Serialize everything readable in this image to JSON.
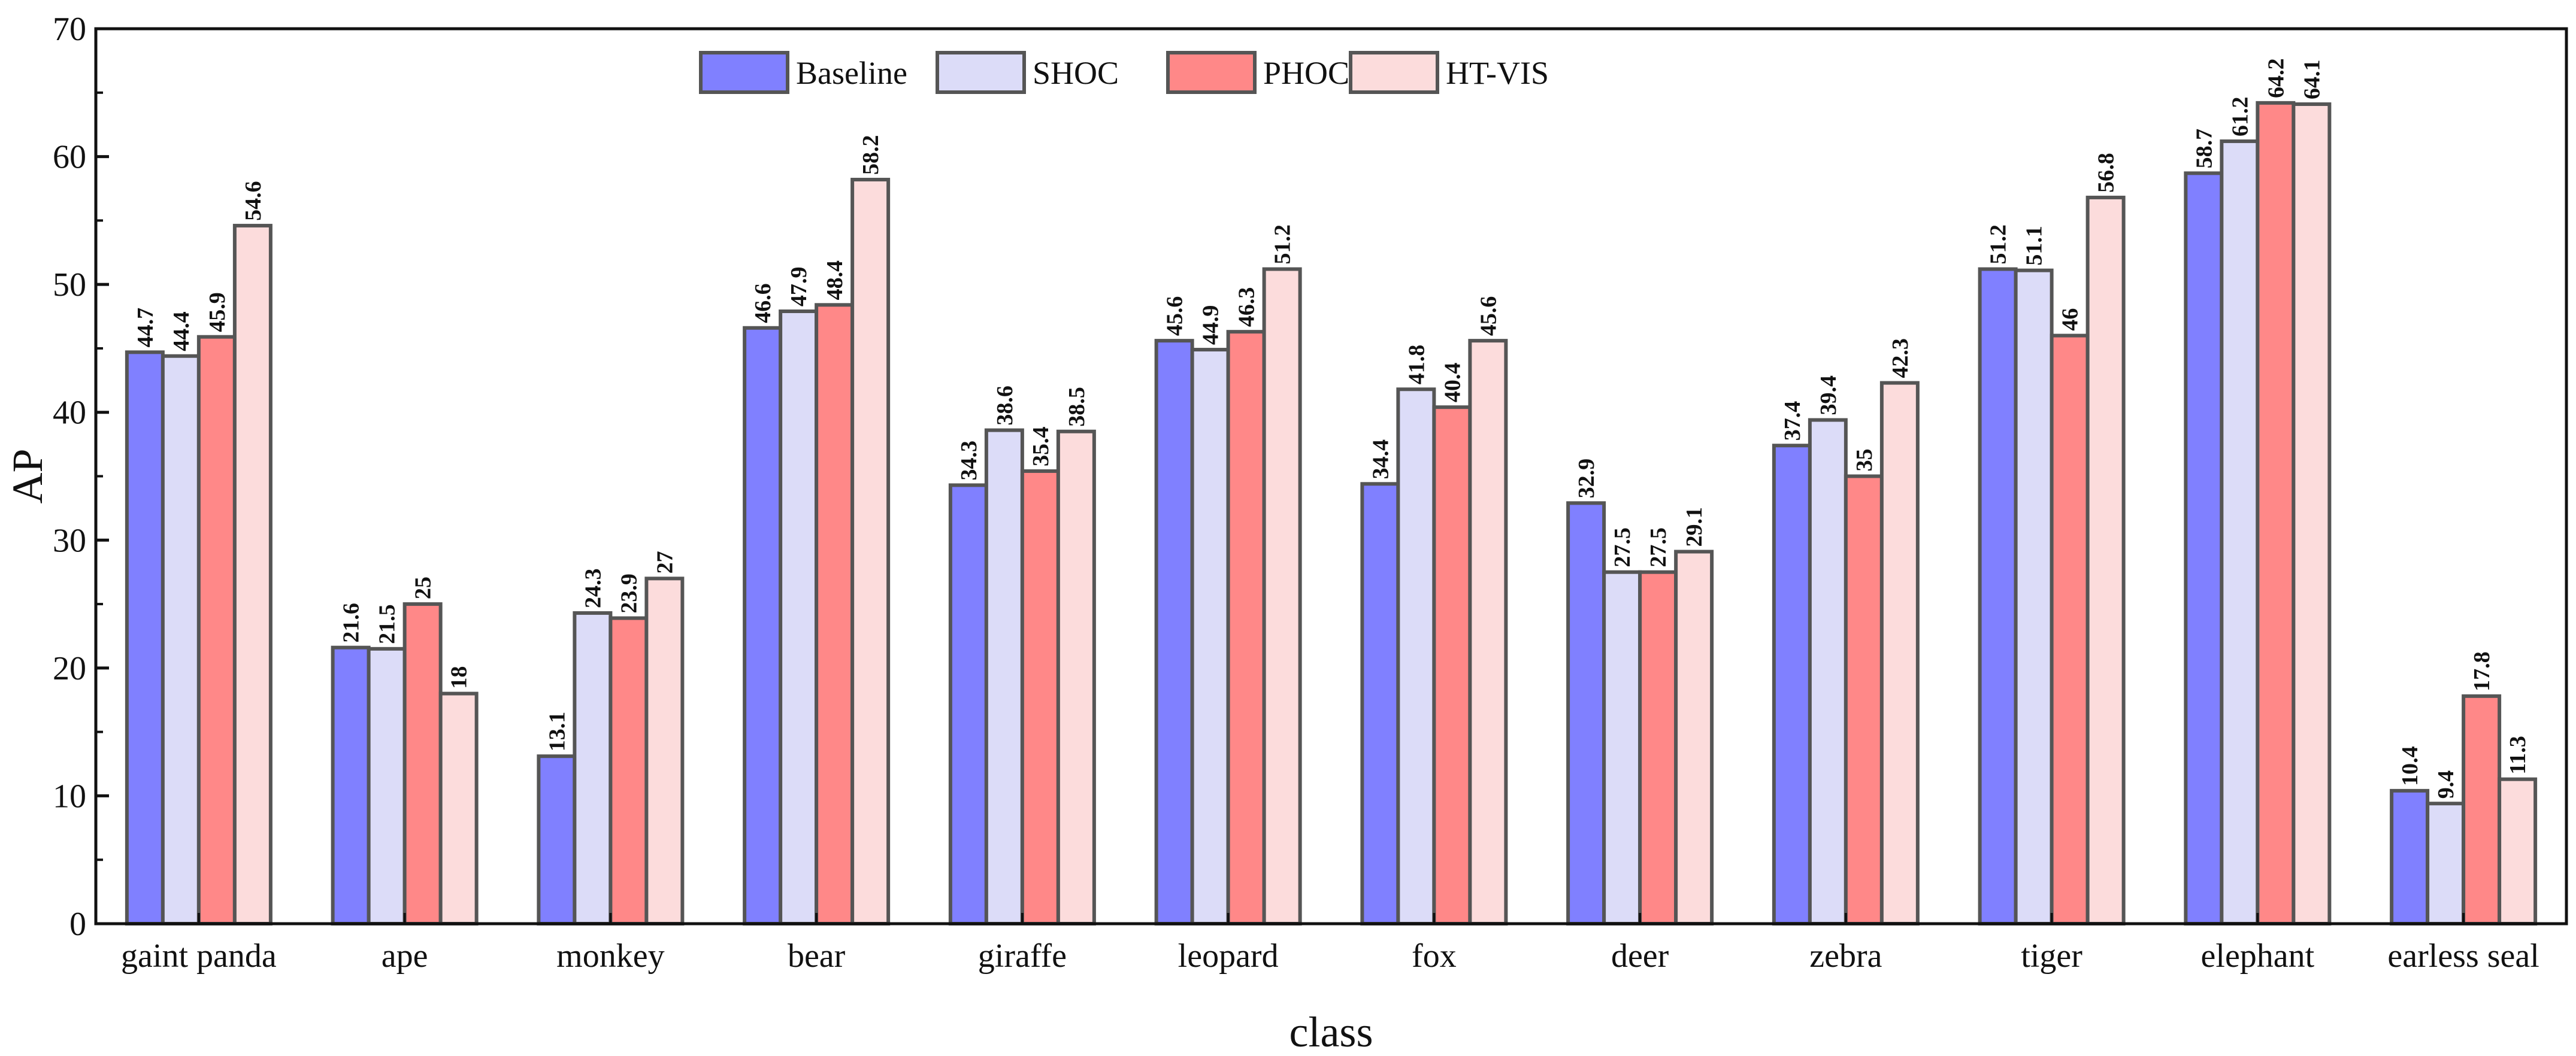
{
  "chart_data": {
    "type": "bar",
    "xlabel": "class",
    "ylabel": "AP",
    "ylim": [
      0,
      70
    ],
    "yticks": [
      0,
      10,
      20,
      30,
      40,
      50,
      60,
      70
    ],
    "grid": false,
    "legend_position": "top-center",
    "categories": [
      "gaint panda",
      "ape",
      "monkey",
      "bear",
      "giraffe",
      "leopard",
      "fox",
      "deer",
      "zebra",
      "tiger",
      "elephant",
      "earless seal"
    ],
    "series": [
      {
        "name": "Baseline",
        "color": "#8080ff",
        "values": [
          44.7,
          21.6,
          13.1,
          46.6,
          34.3,
          45.6,
          34.4,
          32.9,
          37.4,
          51.2,
          58.7,
          10.4
        ],
        "labels": [
          "44.7",
          "21.6",
          "13.1",
          "46.6",
          "34.3",
          "45.6",
          "34.4",
          "32.9",
          "37.4",
          "51.2",
          "58.7",
          "10.4"
        ]
      },
      {
        "name": "SHOC",
        "color": "#dcdcf8",
        "values": [
          44.4,
          21.5,
          24.3,
          47.9,
          38.6,
          44.9,
          41.8,
          27.5,
          39.4,
          51.1,
          61.2,
          9.4
        ],
        "labels": [
          "44.4",
          "21.5",
          "24.3",
          "47.9",
          "38.6",
          "44.9",
          "41.8",
          "27.5",
          "39.4",
          "51.1",
          "61.2",
          "9.4"
        ]
      },
      {
        "name": "PHOC",
        "color": "#ff8888",
        "values": [
          45.9,
          25,
          23.9,
          48.4,
          35.4,
          46.3,
          40.4,
          27.5,
          35,
          46,
          64.2,
          17.8
        ],
        "labels": [
          "45.9",
          "25",
          "23.9",
          "48.4",
          "35.4",
          "46.3",
          "40.4",
          "27.5",
          "35",
          "46",
          "64.2",
          "17.8"
        ]
      },
      {
        "name": "HT-VIS",
        "color": "#fcdcdc",
        "values": [
          54.6,
          18,
          27,
          58.2,
          38.5,
          51.2,
          45.6,
          29.1,
          42.3,
          56.8,
          64.1,
          11.3
        ],
        "labels": [
          "54.6",
          "18",
          "27",
          "58.2",
          "38.5",
          "51.2",
          "45.6",
          "29.1",
          "42.3",
          "56.8",
          "64.1",
          "11.3"
        ]
      }
    ]
  }
}
